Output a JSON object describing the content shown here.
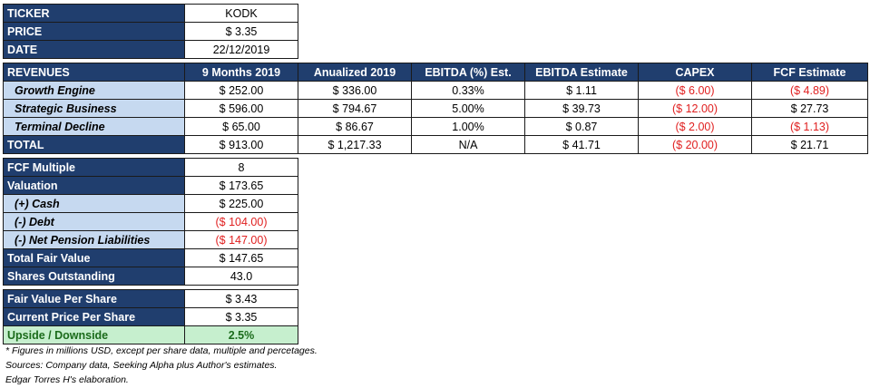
{
  "info": {
    "rows": [
      {
        "label": "TICKER",
        "value": "KODK"
      },
      {
        "label": "PRICE",
        "value": "$ 3.35"
      },
      {
        "label": "DATE",
        "value": "22/12/2019"
      }
    ]
  },
  "revenues": {
    "headers": [
      "REVENUES",
      "9 Months 2019",
      "Anualized 2019",
      "EBITDA (%) Est.",
      "EBITDA Estimate",
      "CAPEX",
      "FCF Estimate"
    ],
    "rows": [
      {
        "name": "Growth Engine",
        "m9": "$ 252.00",
        "annual": "$ 336.00",
        "ebitda_pct": "0.33%",
        "ebitda": "$ 1.11",
        "capex": "($ 6.00)",
        "fcf": "($ 4.89)"
      },
      {
        "name": "Strategic Business",
        "m9": "$ 596.00",
        "annual": "$ 794.67",
        "ebitda_pct": "5.00%",
        "ebitda": "$ 39.73",
        "capex": "($ 12.00)",
        "fcf": "$ 27.73"
      },
      {
        "name": "Terminal Decline",
        "m9": "$ 65.00",
        "annual": "$ 86.67",
        "ebitda_pct": "1.00%",
        "ebitda": "$ 0.87",
        "capex": "($ 2.00)",
        "fcf": "($ 1.13)"
      }
    ],
    "total": {
      "name": "TOTAL",
      "m9": "$ 913.00",
      "annual": "$ 1,217.33",
      "ebitda_pct": "N/A",
      "ebitda": "$ 41.71",
      "capex": "($ 20.00)",
      "fcf": "$ 21.71"
    }
  },
  "valuation": {
    "fcf_multiple_label": "FCF Multiple",
    "fcf_multiple": "8",
    "valuation_label": "Valuation",
    "valuation": "$ 173.65",
    "cash_label": "(+) Cash",
    "cash": "$ 225.00",
    "debt_label": "(-) Debt",
    "debt": "($ 104.00)",
    "pension_label": "(-) Net Pension Liabilities",
    "pension": "($ 147.00)",
    "fair_value_label": "Total Fair Value",
    "fair_value": "$ 147.65",
    "shares_label": "Shares Outstanding",
    "shares": "43.0"
  },
  "per_share": {
    "fvps_label": "Fair Value Per Share",
    "fvps": "$ 3.43",
    "cpps_label": "Current Price Per Share",
    "cpps": "$ 3.35",
    "upside_label": "Upside / Downside",
    "upside": "2.5%"
  },
  "notes": [
    "* Figures in millions USD, except per share data, multiple and percetages.",
    "Sources: Company data, Seeking Alpha plus Author's estimates.",
    "Edgar Torres H's elaboration."
  ],
  "colors": {
    "header": "#203e6e",
    "subrow": "#c6d9f0",
    "negative": "#e02020",
    "upside_bg": "#c6efce",
    "upside_text": "#1b6b1b"
  }
}
